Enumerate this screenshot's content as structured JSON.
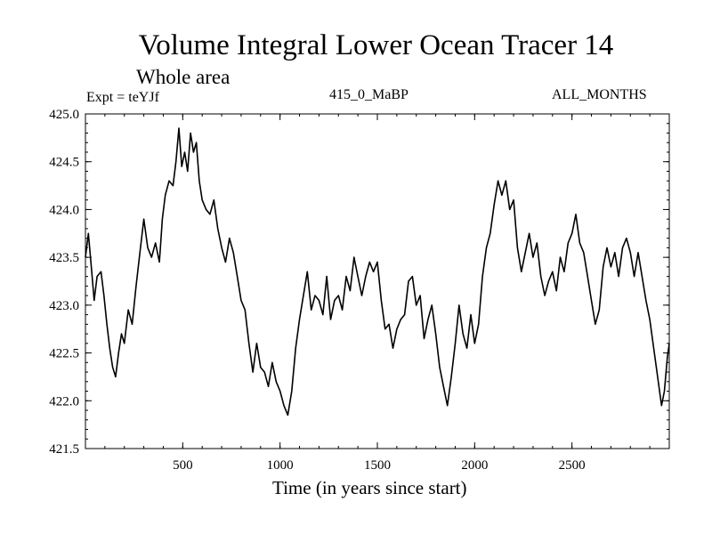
{
  "chart_data": {
    "type": "line",
    "title": "Volume Integral Lower Ocean Tracer 14",
    "subtitle": "Whole area",
    "expt_label": "Expt = teYJf",
    "period_label": "415_0_MaBP",
    "months_label": "ALL_MONTHS",
    "xlabel": "Time (in years since start)",
    "ylabel": "",
    "xlim": [
      0,
      3000
    ],
    "ylim": [
      421.5,
      425.0
    ],
    "x_ticks": [
      500,
      1000,
      1500,
      2000,
      2500
    ],
    "y_ticks": [
      "421.5",
      "422.0",
      "422.5",
      "423.0",
      "423.5",
      "424.0",
      "424.5",
      "425.0"
    ],
    "series": [
      {
        "name": "Lower Ocean Tracer 14",
        "points": [
          [
            0,
            423.5
          ],
          [
            15,
            423.75
          ],
          [
            30,
            423.4
          ],
          [
            45,
            423.05
          ],
          [
            60,
            423.3
          ],
          [
            80,
            423.35
          ],
          [
            95,
            423.1
          ],
          [
            110,
            422.8
          ],
          [
            125,
            422.55
          ],
          [
            140,
            422.35
          ],
          [
            155,
            422.25
          ],
          [
            170,
            422.5
          ],
          [
            185,
            422.7
          ],
          [
            200,
            422.6
          ],
          [
            220,
            422.95
          ],
          [
            240,
            422.8
          ],
          [
            260,
            423.2
          ],
          [
            280,
            423.55
          ],
          [
            300,
            423.9
          ],
          [
            320,
            423.6
          ],
          [
            340,
            423.5
          ],
          [
            360,
            423.65
          ],
          [
            380,
            423.45
          ],
          [
            395,
            423.9
          ],
          [
            410,
            424.15
          ],
          [
            430,
            424.3
          ],
          [
            450,
            424.25
          ],
          [
            465,
            424.5
          ],
          [
            480,
            424.85
          ],
          [
            495,
            424.45
          ],
          [
            510,
            424.6
          ],
          [
            525,
            424.4
          ],
          [
            540,
            424.8
          ],
          [
            555,
            424.6
          ],
          [
            570,
            424.7
          ],
          [
            585,
            424.3
          ],
          [
            600,
            424.1
          ],
          [
            620,
            424.0
          ],
          [
            640,
            423.95
          ],
          [
            660,
            424.1
          ],
          [
            680,
            423.8
          ],
          [
            700,
            423.6
          ],
          [
            720,
            423.45
          ],
          [
            740,
            423.7
          ],
          [
            760,
            423.55
          ],
          [
            780,
            423.3
          ],
          [
            800,
            423.05
          ],
          [
            820,
            422.95
          ],
          [
            840,
            422.6
          ],
          [
            860,
            422.3
          ],
          [
            880,
            422.6
          ],
          [
            900,
            422.35
          ],
          [
            920,
            422.3
          ],
          [
            940,
            422.15
          ],
          [
            960,
            422.4
          ],
          [
            980,
            422.2
          ],
          [
            1000,
            422.1
          ],
          [
            1020,
            421.95
          ],
          [
            1040,
            421.85
          ],
          [
            1060,
            422.1
          ],
          [
            1080,
            422.55
          ],
          [
            1100,
            422.85
          ],
          [
            1120,
            423.1
          ],
          [
            1140,
            423.35
          ],
          [
            1160,
            422.95
          ],
          [
            1180,
            423.1
          ],
          [
            1200,
            423.05
          ],
          [
            1220,
            422.9
          ],
          [
            1240,
            423.3
          ],
          [
            1260,
            422.85
          ],
          [
            1280,
            423.05
          ],
          [
            1300,
            423.1
          ],
          [
            1320,
            422.95
          ],
          [
            1340,
            423.3
          ],
          [
            1360,
            423.15
          ],
          [
            1380,
            423.5
          ],
          [
            1400,
            423.3
          ],
          [
            1420,
            423.1
          ],
          [
            1440,
            423.3
          ],
          [
            1460,
            423.45
          ],
          [
            1480,
            423.35
          ],
          [
            1500,
            423.45
          ],
          [
            1520,
            423.05
          ],
          [
            1540,
            422.75
          ],
          [
            1560,
            422.8
          ],
          [
            1580,
            422.55
          ],
          [
            1600,
            422.75
          ],
          [
            1620,
            422.85
          ],
          [
            1640,
            422.9
          ],
          [
            1660,
            423.25
          ],
          [
            1680,
            423.3
          ],
          [
            1700,
            423.0
          ],
          [
            1720,
            423.1
          ],
          [
            1740,
            422.65
          ],
          [
            1760,
            422.85
          ],
          [
            1780,
            423.0
          ],
          [
            1800,
            422.7
          ],
          [
            1820,
            422.35
          ],
          [
            1840,
            422.15
          ],
          [
            1860,
            421.95
          ],
          [
            1880,
            422.25
          ],
          [
            1900,
            422.6
          ],
          [
            1920,
            423.0
          ],
          [
            1940,
            422.7
          ],
          [
            1960,
            422.55
          ],
          [
            1980,
            422.9
          ],
          [
            2000,
            422.6
          ],
          [
            2020,
            422.8
          ],
          [
            2040,
            423.3
          ],
          [
            2060,
            423.6
          ],
          [
            2080,
            423.75
          ],
          [
            2100,
            424.05
          ],
          [
            2120,
            424.3
          ],
          [
            2140,
            424.15
          ],
          [
            2160,
            424.3
          ],
          [
            2180,
            424.0
          ],
          [
            2200,
            424.1
          ],
          [
            2220,
            423.6
          ],
          [
            2240,
            423.35
          ],
          [
            2260,
            423.55
          ],
          [
            2280,
            423.75
          ],
          [
            2300,
            423.5
          ],
          [
            2320,
            423.65
          ],
          [
            2340,
            423.3
          ],
          [
            2360,
            423.1
          ],
          [
            2380,
            423.25
          ],
          [
            2400,
            423.35
          ],
          [
            2420,
            423.15
          ],
          [
            2440,
            423.5
          ],
          [
            2460,
            423.35
          ],
          [
            2480,
            423.65
          ],
          [
            2500,
            423.75
          ],
          [
            2520,
            423.95
          ],
          [
            2540,
            423.65
          ],
          [
            2560,
            423.55
          ],
          [
            2580,
            423.3
          ],
          [
            2600,
            423.05
          ],
          [
            2620,
            422.8
          ],
          [
            2640,
            422.95
          ],
          [
            2660,
            423.4
          ],
          [
            2680,
            423.6
          ],
          [
            2700,
            423.4
          ],
          [
            2720,
            423.55
          ],
          [
            2740,
            423.3
          ],
          [
            2760,
            423.6
          ],
          [
            2780,
            423.7
          ],
          [
            2800,
            423.55
          ],
          [
            2820,
            423.3
          ],
          [
            2840,
            423.55
          ],
          [
            2860,
            423.3
          ],
          [
            2880,
            423.05
          ],
          [
            2900,
            422.85
          ],
          [
            2920,
            422.55
          ],
          [
            2940,
            422.25
          ],
          [
            2960,
            421.95
          ],
          [
            2975,
            422.1
          ],
          [
            2990,
            422.45
          ],
          [
            3000,
            422.6
          ]
        ]
      }
    ]
  }
}
